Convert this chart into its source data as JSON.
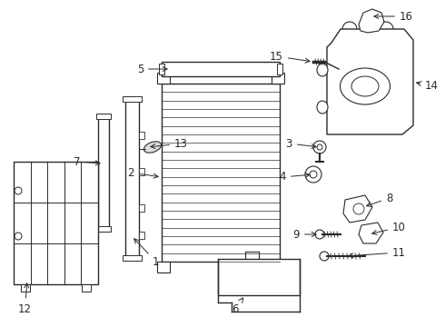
{
  "bg_color": "#ffffff",
  "line_color": "#2a2a2a",
  "figsize": [
    4.9,
    3.6
  ],
  "dpi": 100,
  "xlim": [
    0,
    490
  ],
  "ylim": [
    0,
    360
  ]
}
